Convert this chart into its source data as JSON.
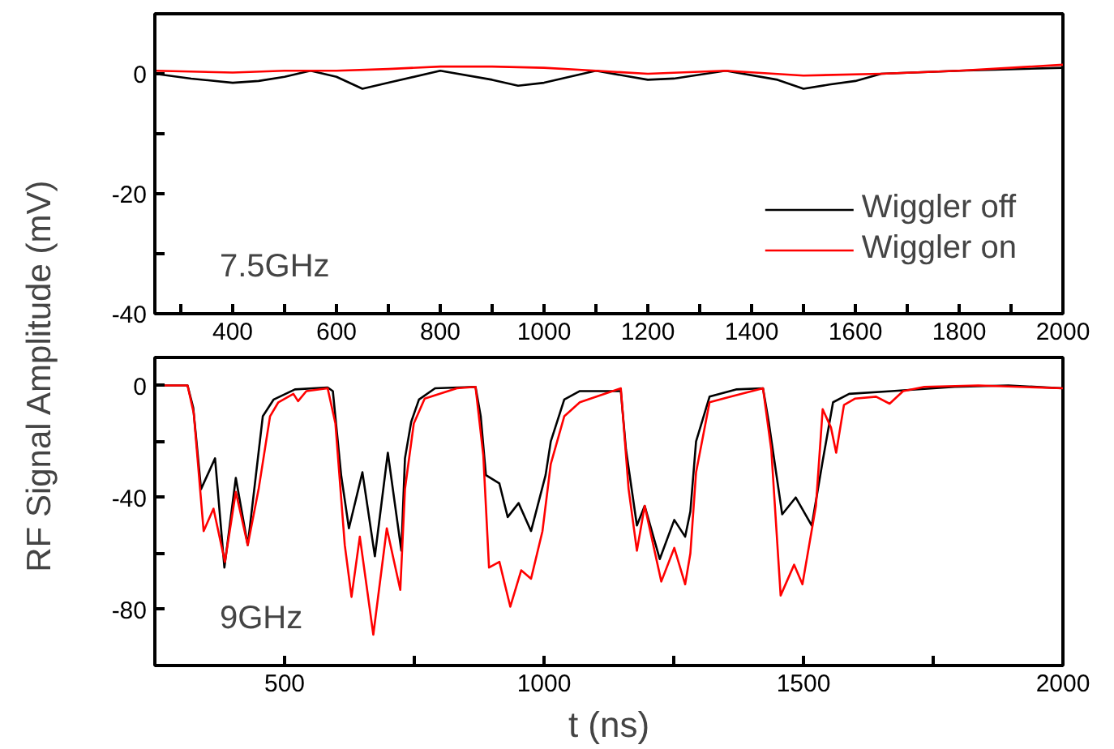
{
  "chart_data": [
    {
      "type": "line",
      "ylabel": "RF Signal Amplitude (mV)",
      "annotations": [
        "7.5GHz"
      ],
      "xlim": [
        250,
        2000
      ],
      "ylim": [
        -40,
        10
      ],
      "xticks": [
        {
          "value": 300,
          "label": null
        },
        400,
        {
          "value": 500,
          "label": null
        },
        600,
        {
          "value": 700,
          "label": null
        },
        800,
        {
          "value": 900,
          "label": null
        },
        1000,
        {
          "value": 1100,
          "label": null
        },
        1200,
        {
          "value": 1300,
          "label": null
        },
        1400,
        {
          "value": 1500,
          "label": null
        },
        1600,
        {
          "value": 1700,
          "label": null
        },
        1800,
        {
          "value": 1900,
          "label": null
        },
        2000
      ],
      "yticks": [
        -40,
        {
          "value": -30,
          "label": null
        },
        -20,
        {
          "value": -10,
          "label": null
        },
        0
      ],
      "legend": "bottom right",
      "grid": false,
      "series": [
        {
          "name": "Wiggler off",
          "color": "#000000",
          "x": [
            250,
            320,
            400,
            450,
            500,
            550,
            600,
            650,
            700,
            800,
            900,
            950,
            1000,
            1100,
            1200,
            1250,
            1350,
            1450,
            1500,
            1550,
            1600,
            1650,
            1800,
            2000
          ],
          "values": [
            0,
            -0.8,
            -1.5,
            -1.2,
            -0.5,
            0.5,
            -0.5,
            -2.5,
            -1.5,
            0.5,
            -1,
            -2,
            -1.5,
            0.5,
            -1,
            -0.8,
            0.5,
            -1,
            -2.5,
            -1.8,
            -1.2,
            0,
            0.5,
            1
          ]
        },
        {
          "name": "Wiggler on",
          "color": "#ff0000",
          "x": [
            250,
            400,
            500,
            600,
            700,
            800,
            900,
            1000,
            1100,
            1200,
            1350,
            1500,
            1650,
            1800,
            2000
          ],
          "values": [
            0.5,
            0.2,
            0.5,
            0.5,
            0.8,
            1.2,
            1.2,
            1,
            0.5,
            0,
            0.5,
            -0.3,
            0,
            0.5,
            1.5
          ]
        }
      ]
    },
    {
      "type": "line",
      "xlabel": "t (ns)",
      "annotations": [
        "9GHz"
      ],
      "xlim": [
        250,
        2000
      ],
      "ylim": [
        -100,
        10
      ],
      "xticks": [
        500,
        {
          "value": 750,
          "label": null
        },
        1000,
        {
          "value": 1250,
          "label": null
        },
        1500,
        {
          "value": 1750,
          "label": null
        },
        2000
      ],
      "yticks": [
        {
          "value": -100,
          "label": null
        },
        -80,
        {
          "value": -60,
          "label": null
        },
        -40,
        {
          "value": -20,
          "label": null
        },
        0
      ],
      "grid": false,
      "series": [
        {
          "color": "#000000",
          "x": [
            250,
            313,
            324,
            339,
            366,
            384,
            406,
            429,
            458,
            479,
            520,
            583,
            593,
            609,
            624,
            650,
            674,
            699,
            725,
            732,
            744,
            759,
            790,
            868,
            878,
            888,
            914,
            930,
            951,
            975,
            1003,
            1013,
            1039,
            1069,
            1148,
            1158,
            1179,
            1194,
            1223,
            1251,
            1272,
            1282,
            1293,
            1319,
            1370,
            1422,
            1433,
            1459,
            1485,
            1516,
            1537,
            1557,
            1588,
            1670,
            1791,
            1895,
            2000
          ],
          "values": [
            0,
            0,
            -8,
            -37,
            -26,
            -65,
            -33,
            -57,
            -11,
            -5,
            -1.4,
            -0.7,
            -2,
            -32,
            -51,
            -31,
            -61,
            -24,
            -59,
            -26,
            -13,
            -5,
            -1,
            -0.5,
            -11,
            -32,
            -35,
            -47,
            -42,
            -52,
            -32,
            -20,
            -5,
            -2,
            -2,
            -23,
            -50,
            -43,
            -62,
            -48,
            -54,
            -45,
            -20,
            -4,
            -1.4,
            -1,
            -13,
            -46,
            -40,
            -50,
            -27,
            -6,
            -3,
            -2,
            -0.5,
            0,
            -1
          ]
        },
        {
          "color": "#ff0000",
          "x": [
            250,
            313,
            325,
            344,
            363,
            385,
            406,
            429,
            450,
            472,
            488,
            517,
            526,
            542,
            583,
            598,
            616,
            629,
            645,
            671,
            697,
            723,
            732,
            749,
            770,
            832,
            868,
            883,
            894,
            914,
            935,
            956,
            975,
            997,
            1013,
            1039,
            1069,
            1148,
            1163,
            1179,
            1194,
            1226,
            1251,
            1272,
            1282,
            1293,
            1319,
            1360,
            1422,
            1438,
            1456,
            1482,
            1498,
            1524,
            1537,
            1553,
            1563,
            1578,
            1599,
            1640,
            1666,
            1692,
            1733,
            1837,
            2000
          ],
          "values": [
            0,
            0,
            -10,
            -52,
            -44,
            -63,
            -38,
            -57,
            -37,
            -11,
            -6,
            -3,
            -5.6,
            -2,
            -1,
            -13.6,
            -57,
            -75.5,
            -54,
            -89,
            -51,
            -73,
            -37,
            -13.6,
            -4.7,
            -1,
            -0.5,
            -25,
            -65,
            -63,
            -79,
            -66,
            -69,
            -52,
            -28,
            -11,
            -6,
            -1,
            -37,
            -59,
            -43,
            -70,
            -58,
            -71,
            -60,
            -31,
            -6,
            -4,
            -1,
            -23,
            -75,
            -64,
            -71,
            -43,
            -8.5,
            -15,
            -24,
            -7,
            -4.7,
            -4,
            -6.5,
            -2,
            -0.5,
            0,
            -1
          ]
        }
      ]
    }
  ]
}
